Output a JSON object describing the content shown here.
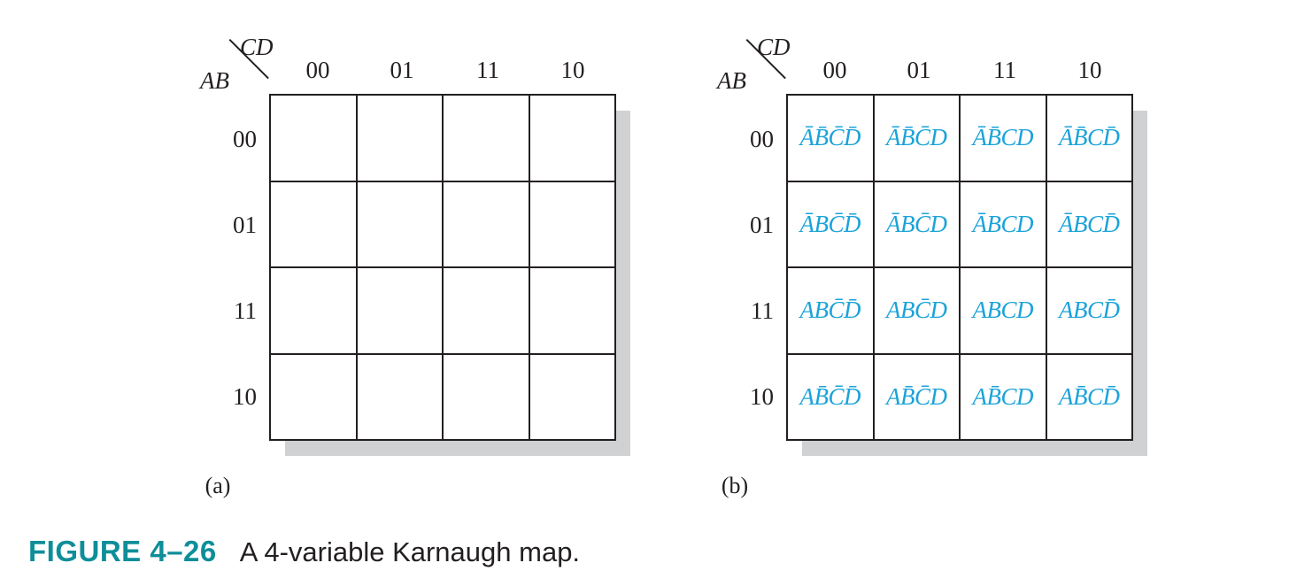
{
  "figure": {
    "number": "FIGURE 4–26",
    "caption": "A 4-variable Karnaugh map."
  },
  "map_a": {
    "sub_label": "(a)",
    "row_var": "AB",
    "col_var": "CD",
    "col_labels": [
      "00",
      "01",
      "11",
      "10"
    ],
    "row_labels": [
      "00",
      "01",
      "11",
      "10"
    ]
  },
  "map_b": {
    "sub_label": "(b)",
    "row_var": "AB",
    "col_var": "CD",
    "col_labels": [
      "00",
      "01",
      "11",
      "10"
    ],
    "row_labels": [
      "00",
      "01",
      "11",
      "10"
    ],
    "cells": [
      [
        "ĀB̄C̄D̄",
        "ĀB̄C̄D",
        "ĀB̄CD",
        "ĀB̄CD̄"
      ],
      [
        "ĀBC̄D̄",
        "ĀBC̄D",
        "ĀBCD",
        "ĀBCD̄"
      ],
      [
        "ABC̄D̄",
        "ABC̄D",
        "ABCD",
        "ABCD̄"
      ],
      [
        "AB̄C̄D̄",
        "AB̄C̄D",
        "AB̄CD",
        "AB̄CD̄"
      ]
    ],
    "cell_color": "#1ba3d9"
  },
  "colors": {
    "caption_accent": "#0e8e99",
    "shadow": "#d0d1d3",
    "ink": "#231f20"
  }
}
